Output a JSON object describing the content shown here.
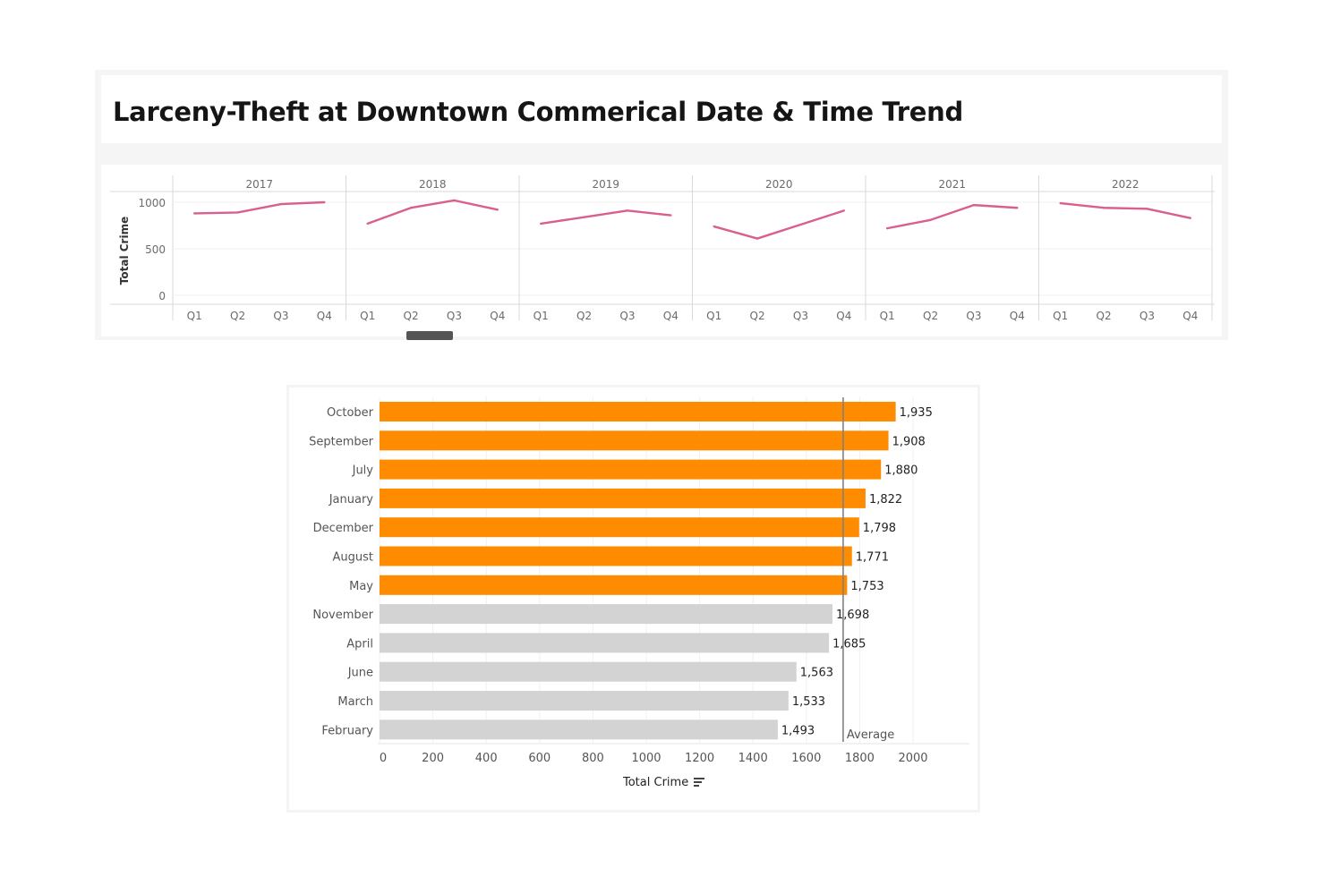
{
  "dashboard": {
    "title": "Larceny-Theft at Downtown Commerical Date & Time Trend"
  },
  "colors": {
    "trend_line": "#d95f8e",
    "highlight_bar": "#ff8c00",
    "muted_bar": "#d3d3d3",
    "reference_line": "#808080"
  },
  "chart_data": [
    {
      "type": "line",
      "ylabel": "Total Crime",
      "ylim": [
        0,
        1000
      ],
      "yticks": [
        0,
        500,
        1000
      ],
      "quarters": [
        "Q1",
        "Q2",
        "Q3",
        "Q4"
      ],
      "years": [
        {
          "year": "2017",
          "values": [
            880,
            890,
            980,
            1000
          ]
        },
        {
          "year": "2018",
          "values": [
            770,
            940,
            1020,
            920
          ]
        },
        {
          "year": "2019",
          "values": [
            770,
            840,
            910,
            860
          ]
        },
        {
          "year": "2020",
          "values": [
            740,
            610,
            760,
            910
          ]
        },
        {
          "year": "2021",
          "values": [
            720,
            810,
            970,
            940
          ]
        },
        {
          "year": "2022",
          "values": [
            990,
            940,
            930,
            830
          ]
        }
      ],
      "grid": true
    },
    {
      "type": "bar",
      "orientation": "horizontal",
      "xlabel": "Total Crime",
      "xlim": [
        0,
        2000
      ],
      "xticks": [
        0,
        200,
        400,
        600,
        800,
        1000,
        1200,
        1400,
        1600,
        1800,
        2000
      ],
      "categories": [
        "October",
        "September",
        "July",
        "January",
        "December",
        "August",
        "May",
        "November",
        "April",
        "June",
        "March",
        "February"
      ],
      "values": [
        1935,
        1908,
        1880,
        1822,
        1798,
        1771,
        1753,
        1698,
        1685,
        1563,
        1533,
        1493
      ],
      "data_labels": [
        "1,935",
        "1,908",
        "1,880",
        "1,822",
        "1,798",
        "1,771",
        "1,753",
        "1,698",
        "1,685",
        "1,563",
        "1,533",
        "1,493"
      ],
      "highlighted": [
        true,
        true,
        true,
        true,
        true,
        true,
        true,
        false,
        false,
        false,
        false,
        false
      ],
      "reference_line": {
        "label": "Average",
        "value": 1738
      }
    }
  ]
}
